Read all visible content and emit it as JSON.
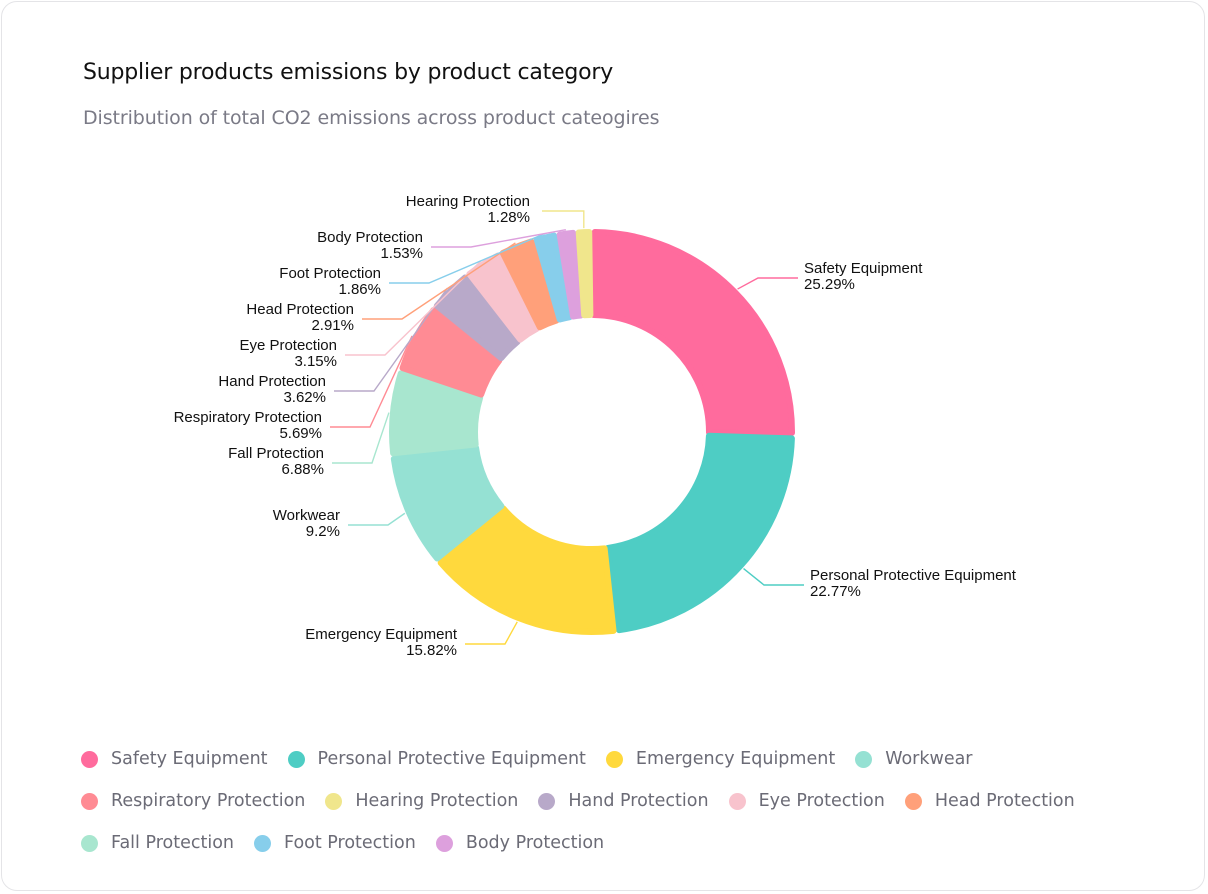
{
  "header": {
    "title": "Supplier products emissions by product category",
    "subtitle": "Distribution of total CO2 emissions across product cateogires"
  },
  "chart_data": {
    "type": "pie",
    "variant": "donut",
    "title": "Supplier products emissions by product category",
    "subtitle": "Distribution of total CO2 emissions across product cateogires",
    "unit": "%",
    "categories": [
      "Safety Equipment",
      "Personal Protective Equipment",
      "Emergency Equipment",
      "Workwear",
      "Fall Protection",
      "Respiratory Protection",
      "Hand Protection",
      "Eye Protection",
      "Head Protection",
      "Foot Protection",
      "Body Protection",
      "Hearing Protection"
    ],
    "values": [
      25.29,
      22.77,
      15.82,
      9.2,
      6.88,
      5.69,
      3.62,
      3.15,
      2.91,
      1.86,
      1.53,
      1.28
    ],
    "value_labels": [
      "25.29%",
      "22.77%",
      "15.82%",
      "9.2%",
      "6.88%",
      "5.69%",
      "3.62%",
      "3.15%",
      "2.91%",
      "1.86%",
      "1.53%",
      "1.28%"
    ],
    "colors": [
      "#ff6b9d",
      "#4ecdc4",
      "#ffd93d",
      "#95e1d3",
      "#a8e6cf",
      "#ff8b94",
      "#b8a9c9",
      "#f8c3cd",
      "#ffa07a",
      "#87ceeb",
      "#dda0dd",
      "#f0e68c"
    ],
    "legend_placement": "bottom"
  },
  "legend": {
    "rows": [
      [
        {
          "label": "Safety Equipment",
          "color": "#ff6b9d"
        },
        {
          "label": "Personal Protective Equipment",
          "color": "#4ecdc4"
        },
        {
          "label": "Emergency Equipment",
          "color": "#ffd93d"
        },
        {
          "label": "Workwear",
          "color": "#95e1d3"
        }
      ],
      [
        {
          "label": "Respiratory Protection",
          "color": "#ff8b94"
        },
        {
          "label": "Hearing Protection",
          "color": "#f0e68c"
        },
        {
          "label": "Hand Protection",
          "color": "#b8a9c9"
        },
        {
          "label": "Eye Protection",
          "color": "#f8c3cd"
        },
        {
          "label": "Head Protection",
          "color": "#ffa07a"
        }
      ],
      [
        {
          "label": "Fall Protection",
          "color": "#a8e6cf"
        },
        {
          "label": "Foot Protection",
          "color": "#87ceeb"
        },
        {
          "label": "Body Protection",
          "color": "#dda0dd"
        }
      ]
    ]
  }
}
